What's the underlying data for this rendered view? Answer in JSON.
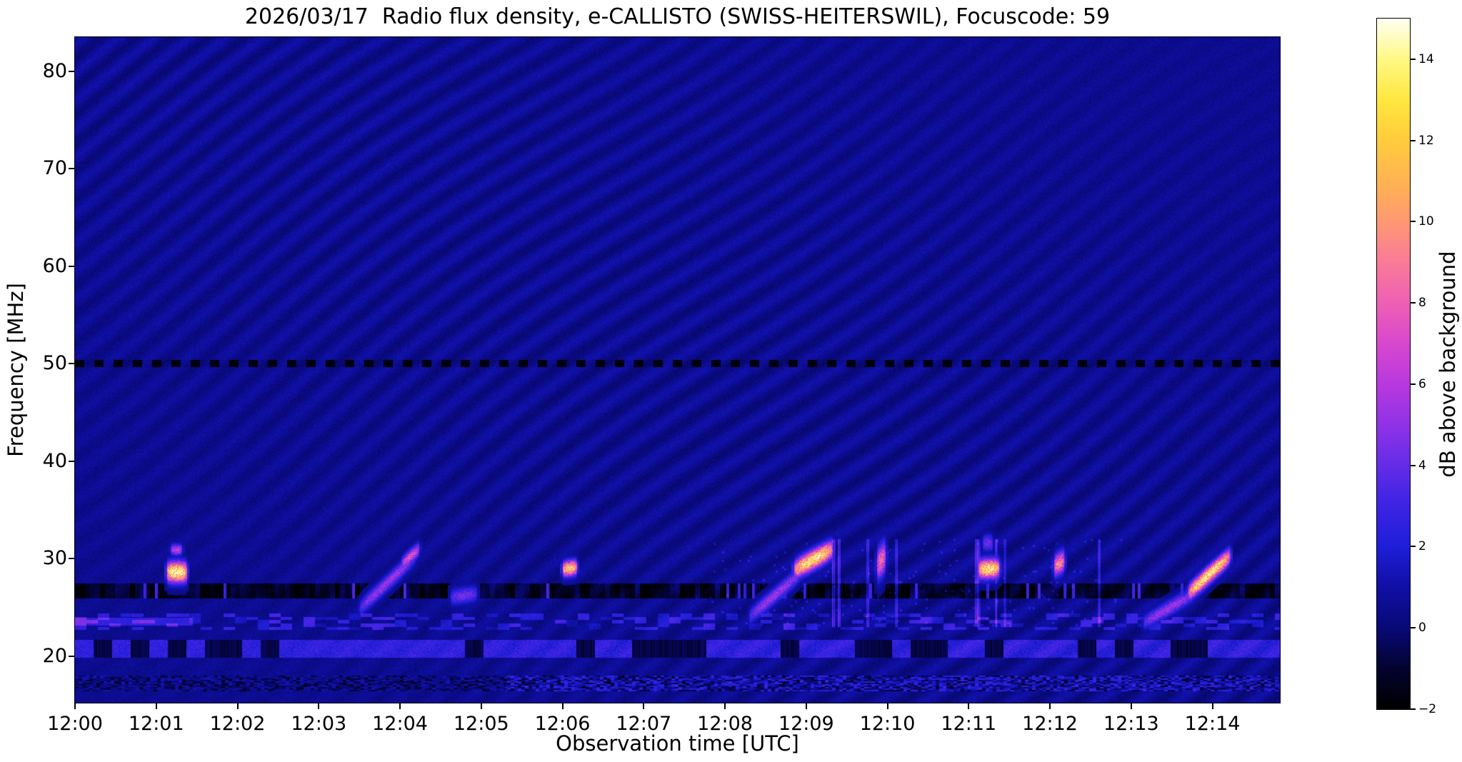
{
  "title": "2026/03/17  Radio flux density, e-CALLISTO (SWISS-HEITERSWIL), Focuscode: 59",
  "colors": {
    "figure_bg": "#ffffff",
    "text": "#000000",
    "frame": "#000000"
  },
  "chart_data": {
    "type": "heatmap",
    "subtype": "radio-spectrogram",
    "title": "2026/03/17  Radio flux density, e-CALLISTO (SWISS-HEITERSWIL), Focuscode: 59",
    "date": "2026/03/17",
    "instrument": "e-CALLISTO",
    "station": "SWISS-HEITERSWIL",
    "focuscode": 59,
    "xlabel": "Observation time [UTC]",
    "ylabel": "Frequency [MHz]",
    "colorbar_label": "dB above background",
    "x_ticks": [
      "12:00",
      "12:01",
      "12:02",
      "12:03",
      "12:04",
      "12:05",
      "12:06",
      "12:07",
      "12:08",
      "12:09",
      "12:10",
      "12:11",
      "12:12",
      "12:13",
      "12:14"
    ],
    "x_tick_minutes": [
      0,
      1,
      2,
      3,
      4,
      5,
      6,
      7,
      8,
      9,
      10,
      11,
      12,
      13,
      14
    ],
    "x_range_minutes": [
      0,
      14.83
    ],
    "y_ticks": [
      80,
      70,
      60,
      50,
      40,
      30,
      20
    ],
    "y_range_mhz": [
      15.2,
      83.5
    ],
    "colorbar_ticks": [
      "−2",
      "0",
      "2",
      "4",
      "6",
      "8",
      "10",
      "12",
      "14"
    ],
    "colorbar_tick_values": [
      -2,
      0,
      2,
      4,
      6,
      8,
      10,
      12,
      14
    ],
    "color_range_db": [
      -2,
      15
    ],
    "background_level_db": 0.55,
    "grid": false,
    "colormap_stops": [
      [
        0.0,
        [
          0,
          0,
          0
        ]
      ],
      [
        0.06,
        [
          3,
          3,
          48
        ]
      ],
      [
        0.118,
        [
          9,
          9,
          120
        ]
      ],
      [
        0.18,
        [
          16,
          16,
          168
        ]
      ],
      [
        0.235,
        [
          30,
          30,
          216
        ]
      ],
      [
        0.3,
        [
          64,
          36,
          228
        ]
      ],
      [
        0.353,
        [
          100,
          44,
          232
        ]
      ],
      [
        0.41,
        [
          142,
          50,
          230
        ]
      ],
      [
        0.47,
        [
          184,
          56,
          222
        ]
      ],
      [
        0.53,
        [
          216,
          72,
          206
        ]
      ],
      [
        0.588,
        [
          238,
          96,
          180
        ]
      ],
      [
        0.65,
        [
          250,
          124,
          150
        ]
      ],
      [
        0.706,
        [
          255,
          152,
          114
        ]
      ],
      [
        0.76,
        [
          255,
          178,
          84
        ]
      ],
      [
        0.824,
        [
          255,
          204,
          60
        ]
      ],
      [
        0.88,
        [
          255,
          230,
          62
        ]
      ],
      [
        0.94,
        [
          255,
          248,
          130
        ]
      ],
      [
        1.0,
        [
          255,
          255,
          242
        ]
      ]
    ],
    "interference_line": {
      "freq_mhz": 50.0,
      "level_db": -1.9,
      "style": "dashed"
    },
    "noise_bands": [
      {
        "f_lo": 25.9,
        "f_hi": 27.45,
        "kind": "dark-mottled",
        "description": "dark mottled interference band"
      },
      {
        "f_lo": 22.65,
        "f_hi": 24.35,
        "kind": "streaky",
        "description": "streaky blue band"
      },
      {
        "f_lo": 19.85,
        "f_hi": 21.65,
        "kind": "bright-dropouts",
        "description": "bright blue band with dark dropouts after ~12:06"
      },
      {
        "f_lo": 16.35,
        "f_hi": 17.95,
        "kind": "mottled-bright",
        "description": "mottled bottom band, brighter after ~12:05"
      }
    ],
    "left_edge_line": {
      "t0": 0,
      "t1": 1.45,
      "f_lo": 23.15,
      "f_hi": 23.95,
      "boost_db": 2.0
    },
    "vertical_striations": {
      "t0": 7.8,
      "t1": 12.9,
      "f_lo": 23.0,
      "f_hi": 32.0,
      "peak_db": 3.5
    },
    "bursts": [
      {
        "t0": 1.13,
        "t1": 1.38,
        "f_start": 28.6,
        "f_end": 28.6,
        "sigma_f": 1.0,
        "peak_db": 14
      },
      {
        "t0": 1.18,
        "t1": 1.32,
        "f_start": 30.9,
        "f_end": 30.9,
        "sigma_f": 0.55,
        "peak_db": 6
      },
      {
        "t0": 3.5,
        "t1": 4.2,
        "f_start": 24.8,
        "f_end": 30.3,
        "sigma_f": 0.8,
        "peak_db": 5
      },
      {
        "t0": 4.02,
        "t1": 4.24,
        "f_start": 29.4,
        "f_end": 31.0,
        "sigma_f": 0.7,
        "peak_db": 7
      },
      {
        "t0": 4.62,
        "t1": 4.95,
        "f_start": 26.0,
        "f_end": 26.4,
        "sigma_f": 0.8,
        "peak_db": 4
      },
      {
        "t0": 6.0,
        "t1": 6.18,
        "f_start": 28.9,
        "f_end": 29.1,
        "sigma_f": 0.75,
        "peak_db": 12
      },
      {
        "t0": 8.3,
        "t1": 8.95,
        "f_start": 24.0,
        "f_end": 28.6,
        "sigma_f": 0.8,
        "peak_db": 5
      },
      {
        "t0": 8.85,
        "t1": 9.33,
        "f_start": 28.8,
        "f_end": 31.0,
        "sigma_f": 0.95,
        "peak_db": 13
      },
      {
        "t0": 9.87,
        "t1": 9.98,
        "f_start": 29.3,
        "f_end": 30.3,
        "sigma_f": 1.6,
        "peak_db": 8
      },
      {
        "t0": 11.12,
        "t1": 11.38,
        "f_start": 28.9,
        "f_end": 29.0,
        "sigma_f": 0.95,
        "peak_db": 13
      },
      {
        "t0": 11.17,
        "t1": 11.3,
        "f_start": 31.6,
        "f_end": 31.6,
        "sigma_f": 0.8,
        "peak_db": 4
      },
      {
        "t0": 12.05,
        "t1": 12.18,
        "f_start": 29.2,
        "f_end": 29.8,
        "sigma_f": 1.1,
        "peak_db": 9
      },
      {
        "t0": 13.15,
        "t1": 13.78,
        "f_start": 23.4,
        "f_end": 26.4,
        "sigma_f": 0.75,
        "peak_db": 5
      },
      {
        "t0": 13.7,
        "t1": 14.22,
        "f_start": 26.4,
        "f_end": 30.3,
        "sigma_f": 0.85,
        "peak_db": 13
      }
    ]
  }
}
